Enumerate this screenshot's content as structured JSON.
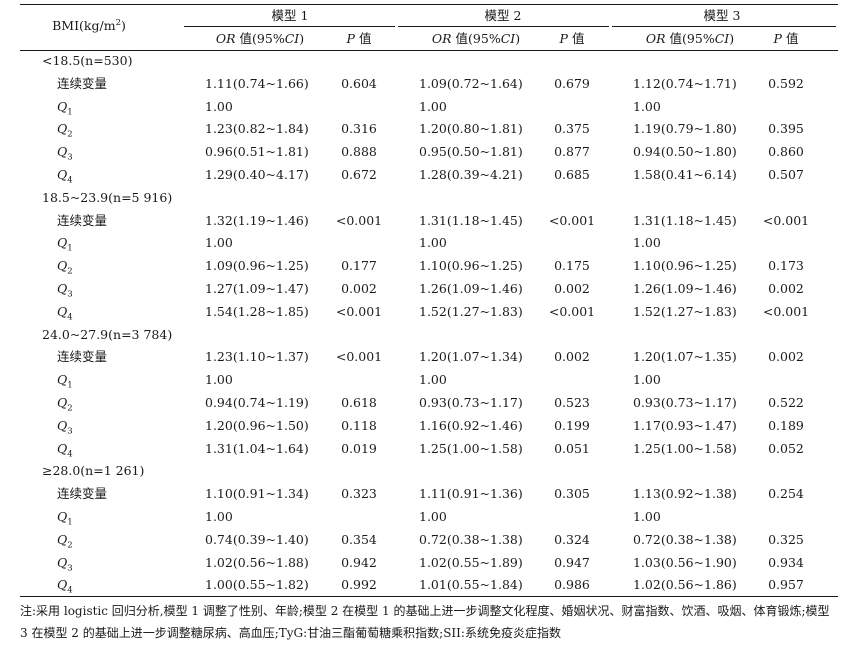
{
  "header": {
    "bmi_label": "BMI(kg/m",
    "bmi_sup": "2",
    "bmi_close": ")",
    "model1": "模型 1",
    "model2": "模型 2",
    "model3": "模型 3",
    "or_italic": "OR",
    "or_rest": " 值(95%",
    "ci_italic": "CI",
    "ci_close": ")",
    "p_italic": "P",
    "p_rest": " 值"
  },
  "groups": [
    {
      "label": "<18.5(n=530)",
      "rows": [
        {
          "label": "连续变量",
          "q": "",
          "m1_or": "1.11(0.74~1.66)",
          "m1_p": "0.604",
          "m2_or": "1.09(0.72~1.64)",
          "m2_p": "0.679",
          "m3_or": "1.12(0.74~1.71)",
          "m3_p": "0.592"
        },
        {
          "label": "Q",
          "q": "1",
          "m1_or": "1.00",
          "m1_p": "",
          "m2_or": "1.00",
          "m2_p": "",
          "m3_or": "1.00",
          "m3_p": ""
        },
        {
          "label": "Q",
          "q": "2",
          "m1_or": "1.23(0.82~1.84)",
          "m1_p": "0.316",
          "m2_or": "1.20(0.80~1.81)",
          "m2_p": "0.375",
          "m3_or": "1.19(0.79~1.80)",
          "m3_p": "0.395"
        },
        {
          "label": "Q",
          "q": "3",
          "m1_or": "0.96(0.51~1.81)",
          "m1_p": "0.888",
          "m2_or": "0.95(0.50~1.81)",
          "m2_p": "0.877",
          "m3_or": "0.94(0.50~1.80)",
          "m3_p": "0.860"
        },
        {
          "label": "Q",
          "q": "4",
          "m1_or": "1.29(0.40~4.17)",
          "m1_p": "0.672",
          "m2_or": "1.28(0.39~4.21)",
          "m2_p": "0.685",
          "m3_or": "1.58(0.41~6.14)",
          "m3_p": "0.507"
        }
      ]
    },
    {
      "label": "18.5~23.9(n=5 916)",
      "rows": [
        {
          "label": "连续变量",
          "q": "",
          "m1_or": "1.32(1.19~1.46)",
          "m1_p": "<0.001",
          "m2_or": "1.31(1.18~1.45)",
          "m2_p": "<0.001",
          "m3_or": "1.31(1.18~1.45)",
          "m3_p": "<0.001"
        },
        {
          "label": "Q",
          "q": "1",
          "m1_or": "1.00",
          "m1_p": "",
          "m2_or": "1.00",
          "m2_p": "",
          "m3_or": "1.00",
          "m3_p": ""
        },
        {
          "label": "Q",
          "q": "2",
          "m1_or": "1.09(0.96~1.25)",
          "m1_p": "0.177",
          "m2_or": "1.10(0.96~1.25)",
          "m2_p": "0.175",
          "m3_or": "1.10(0.96~1.25)",
          "m3_p": "0.173"
        },
        {
          "label": "Q",
          "q": "3",
          "m1_or": "1.27(1.09~1.47)",
          "m1_p": "0.002",
          "m2_or": "1.26(1.09~1.46)",
          "m2_p": "0.002",
          "m3_or": "1.26(1.09~1.46)",
          "m3_p": "0.002"
        },
        {
          "label": "Q",
          "q": "4",
          "m1_or": "1.54(1.28~1.85)",
          "m1_p": "<0.001",
          "m2_or": "1.52(1.27~1.83)",
          "m2_p": "<0.001",
          "m3_or": "1.52(1.27~1.83)",
          "m3_p": "<0.001"
        }
      ]
    },
    {
      "label": "24.0~27.9(n=3 784)",
      "rows": [
        {
          "label": "连续变量",
          "q": "",
          "m1_or": "1.23(1.10~1.37)",
          "m1_p": "<0.001",
          "m2_or": "1.20(1.07~1.34)",
          "m2_p": "0.002",
          "m3_or": "1.20(1.07~1.35)",
          "m3_p": "0.002"
        },
        {
          "label": "Q",
          "q": "1",
          "m1_or": "1.00",
          "m1_p": "",
          "m2_or": "1.00",
          "m2_p": "",
          "m3_or": "1.00",
          "m3_p": ""
        },
        {
          "label": "Q",
          "q": "2",
          "m1_or": "0.94(0.74~1.19)",
          "m1_p": "0.618",
          "m2_or": "0.93(0.73~1.17)",
          "m2_p": "0.523",
          "m3_or": "0.93(0.73~1.17)",
          "m3_p": "0.522"
        },
        {
          "label": "Q",
          "q": "3",
          "m1_or": "1.20(0.96~1.50)",
          "m1_p": "0.118",
          "m2_or": "1.16(0.92~1.46)",
          "m2_p": "0.199",
          "m3_or": "1.17(0.93~1.47)",
          "m3_p": "0.189"
        },
        {
          "label": "Q",
          "q": "4",
          "m1_or": "1.31(1.04~1.64)",
          "m1_p": "0.019",
          "m2_or": "1.25(1.00~1.58)",
          "m2_p": "0.051",
          "m3_or": "1.25(1.00~1.58)",
          "m3_p": "0.052"
        }
      ]
    },
    {
      "label": "≥28.0(n=1 261)",
      "rows": [
        {
          "label": "连续变量",
          "q": "",
          "m1_or": "1.10(0.91~1.34)",
          "m1_p": "0.323",
          "m2_or": "1.11(0.91~1.36)",
          "m2_p": "0.305",
          "m3_or": "1.13(0.92~1.38)",
          "m3_p": "0.254"
        },
        {
          "label": "Q",
          "q": "1",
          "m1_or": "1.00",
          "m1_p": "",
          "m2_or": "1.00",
          "m2_p": "",
          "m3_or": "1.00",
          "m3_p": ""
        },
        {
          "label": "Q",
          "q": "2",
          "m1_or": "0.74(0.39~1.40)",
          "m1_p": "0.354",
          "m2_or": "0.72(0.38~1.38)",
          "m2_p": "0.324",
          "m3_or": "0.72(0.38~1.38)",
          "m3_p": "0.325"
        },
        {
          "label": "Q",
          "q": "3",
          "m1_or": "1.02(0.56~1.88)",
          "m1_p": "0.942",
          "m2_or": "1.02(0.55~1.89)",
          "m2_p": "0.947",
          "m3_or": "1.03(0.56~1.90)",
          "m3_p": "0.934"
        },
        {
          "label": "Q",
          "q": "4",
          "m1_or": "1.00(0.55~1.82)",
          "m1_p": "0.992",
          "m2_or": "1.01(0.55~1.84)",
          "m2_p": "0.986",
          "m3_or": "1.02(0.56~1.86)",
          "m3_p": "0.957"
        }
      ]
    }
  ],
  "note": "注:采用 logistic 回归分析,模型 1 调整了性别、年龄;模型 2 在模型 1 的基础上进一步调整文化程度、婚姻状况、财富指数、饮酒、吸烟、体育锻炼;模型 3 在模型 2 的基础上进一步调整糖尿病、高血压;TyG:甘油三酯葡萄糖乘积指数;SII:系统免疫炎症指数"
}
